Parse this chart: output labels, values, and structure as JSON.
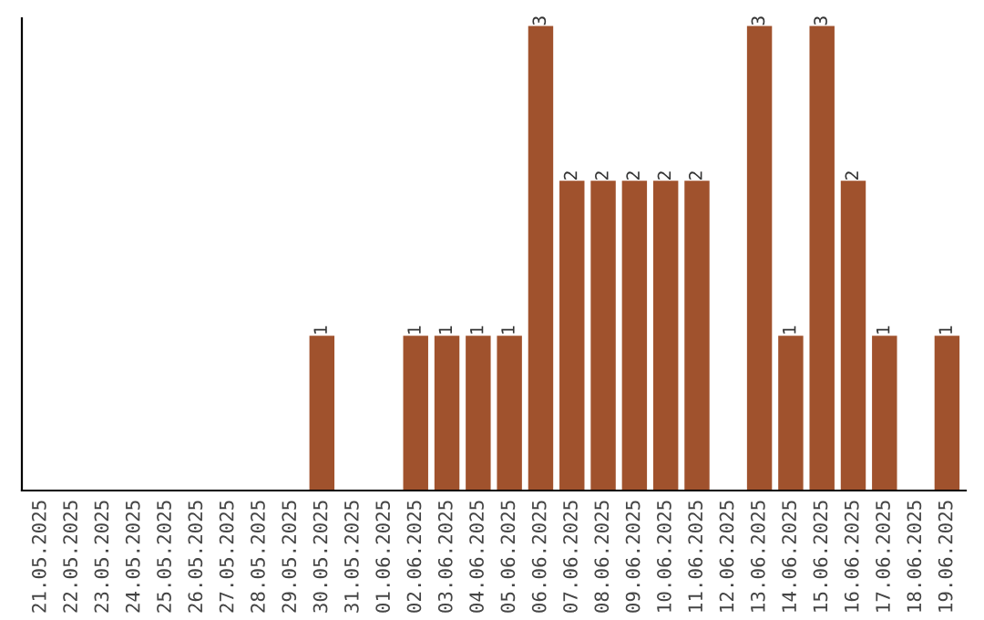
{
  "chart_data": {
    "type": "bar",
    "categories": [
      "21.05.2025",
      "22.05.2025",
      "23.05.2025",
      "24.05.2025",
      "25.05.2025",
      "26.05.2025",
      "27.05.2025",
      "28.05.2025",
      "29.05.2025",
      "30.05.2025",
      "31.05.2025",
      "01.06.2025",
      "02.06.2025",
      "03.06.2025",
      "04.06.2025",
      "05.06.2025",
      "06.06.2025",
      "07.06.2025",
      "08.06.2025",
      "09.06.2025",
      "10.06.2025",
      "11.06.2025",
      "12.06.2025",
      "13.06.2025",
      "14.06.2025",
      "15.06.2025",
      "16.06.2025",
      "17.06.2025",
      "18.06.2025",
      "19.06.2025"
    ],
    "values": [
      0,
      0,
      0,
      0,
      0,
      0,
      0,
      0,
      0,
      1,
      0,
      0,
      1,
      1,
      1,
      1,
      3,
      2,
      2,
      2,
      2,
      2,
      0,
      3,
      1,
      3,
      2,
      1,
      0,
      1
    ],
    "value_labels": [
      null,
      null,
      null,
      null,
      null,
      null,
      null,
      null,
      null,
      "1",
      null,
      null,
      "1",
      "1",
      "1",
      "1",
      "3",
      "2",
      "2",
      "2",
      "2",
      "2",
      null,
      "3",
      "1",
      "3",
      "2",
      "1",
      null,
      "1"
    ],
    "color": "#a0522d",
    "ylim": [
      0,
      3.05
    ],
    "tick_labels": "x",
    "grid": false,
    "legend": false
  }
}
